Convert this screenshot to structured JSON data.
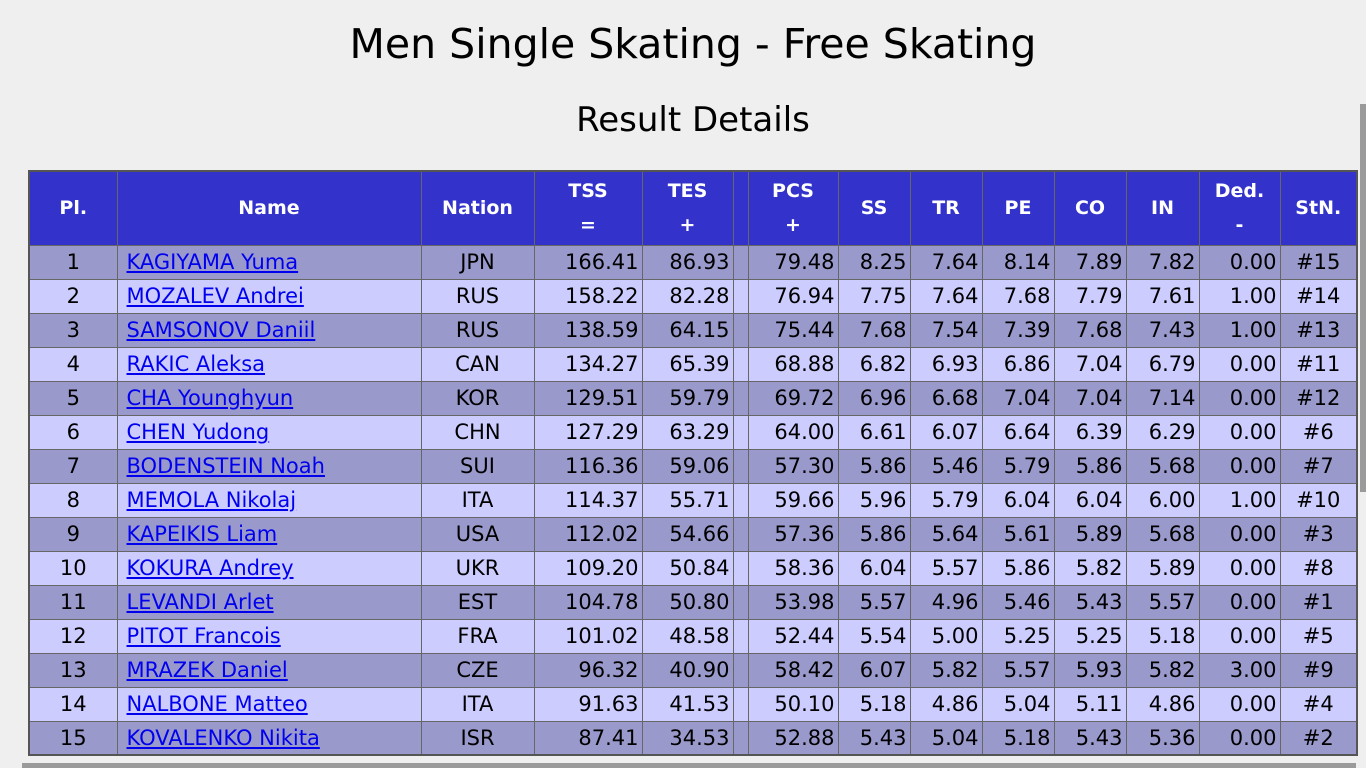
{
  "title": "Men Single Skating - Free Skating",
  "subtitle": "Result Details",
  "headers": {
    "pl": "Pl.",
    "name": "Name",
    "nation": "Nation",
    "tss": "TSS",
    "tss_sym": "=",
    "tes": "TES",
    "tes_sym": "+",
    "pcs": "PCS",
    "pcs_sym": "+",
    "ss": "SS",
    "tr": "TR",
    "pe": "PE",
    "co": "CO",
    "in": "IN",
    "ded": "Ded.",
    "ded_sym": "-",
    "stn": "StN."
  },
  "rows": [
    {
      "pl": "1",
      "name": "KAGIYAMA Yuma",
      "nation": "JPN",
      "tss": "166.41",
      "tes": "86.93",
      "pcs": "79.48",
      "ss": "8.25",
      "tr": "7.64",
      "pe": "8.14",
      "co": "7.89",
      "in": "7.82",
      "ded": "0.00",
      "stn": "#15"
    },
    {
      "pl": "2",
      "name": "MOZALEV Andrei",
      "nation": "RUS",
      "tss": "158.22",
      "tes": "82.28",
      "pcs": "76.94",
      "ss": "7.75",
      "tr": "7.64",
      "pe": "7.68",
      "co": "7.79",
      "in": "7.61",
      "ded": "1.00",
      "stn": "#14"
    },
    {
      "pl": "3",
      "name": "SAMSONOV Daniil",
      "nation": "RUS",
      "tss": "138.59",
      "tes": "64.15",
      "pcs": "75.44",
      "ss": "7.68",
      "tr": "7.54",
      "pe": "7.39",
      "co": "7.68",
      "in": "7.43",
      "ded": "1.00",
      "stn": "#13"
    },
    {
      "pl": "4",
      "name": "RAKIC Aleksa",
      "nation": "CAN",
      "tss": "134.27",
      "tes": "65.39",
      "pcs": "68.88",
      "ss": "6.82",
      "tr": "6.93",
      "pe": "6.86",
      "co": "7.04",
      "in": "6.79",
      "ded": "0.00",
      "stn": "#11"
    },
    {
      "pl": "5",
      "name": "CHA Younghyun",
      "nation": "KOR",
      "tss": "129.51",
      "tes": "59.79",
      "pcs": "69.72",
      "ss": "6.96",
      "tr": "6.68",
      "pe": "7.04",
      "co": "7.04",
      "in": "7.14",
      "ded": "0.00",
      "stn": "#12"
    },
    {
      "pl": "6",
      "name": "CHEN Yudong",
      "nation": "CHN",
      "tss": "127.29",
      "tes": "63.29",
      "pcs": "64.00",
      "ss": "6.61",
      "tr": "6.07",
      "pe": "6.64",
      "co": "6.39",
      "in": "6.29",
      "ded": "0.00",
      "stn": "#6"
    },
    {
      "pl": "7",
      "name": "BODENSTEIN Noah",
      "nation": "SUI",
      "tss": "116.36",
      "tes": "59.06",
      "pcs": "57.30",
      "ss": "5.86",
      "tr": "5.46",
      "pe": "5.79",
      "co": "5.86",
      "in": "5.68",
      "ded": "0.00",
      "stn": "#7"
    },
    {
      "pl": "8",
      "name": "MEMOLA Nikolaj",
      "nation": "ITA",
      "tss": "114.37",
      "tes": "55.71",
      "pcs": "59.66",
      "ss": "5.96",
      "tr": "5.79",
      "pe": "6.04",
      "co": "6.04",
      "in": "6.00",
      "ded": "1.00",
      "stn": "#10"
    },
    {
      "pl": "9",
      "name": "KAPEIKIS Liam",
      "nation": "USA",
      "tss": "112.02",
      "tes": "54.66",
      "pcs": "57.36",
      "ss": "5.86",
      "tr": "5.64",
      "pe": "5.61",
      "co": "5.89",
      "in": "5.68",
      "ded": "0.00",
      "stn": "#3"
    },
    {
      "pl": "10",
      "name": "KOKURA Andrey",
      "nation": "UKR",
      "tss": "109.20",
      "tes": "50.84",
      "pcs": "58.36",
      "ss": "6.04",
      "tr": "5.57",
      "pe": "5.86",
      "co": "5.82",
      "in": "5.89",
      "ded": "0.00",
      "stn": "#8"
    },
    {
      "pl": "11",
      "name": "LEVANDI Arlet",
      "nation": "EST",
      "tss": "104.78",
      "tes": "50.80",
      "pcs": "53.98",
      "ss": "5.57",
      "tr": "4.96",
      "pe": "5.46",
      "co": "5.43",
      "in": "5.57",
      "ded": "0.00",
      "stn": "#1"
    },
    {
      "pl": "12",
      "name": "PITOT Francois",
      "nation": "FRA",
      "tss": "101.02",
      "tes": "48.58",
      "pcs": "52.44",
      "ss": "5.54",
      "tr": "5.00",
      "pe": "5.25",
      "co": "5.25",
      "in": "5.18",
      "ded": "0.00",
      "stn": "#5"
    },
    {
      "pl": "13",
      "name": "MRAZEK Daniel",
      "nation": "CZE",
      "tss": "96.32",
      "tes": "40.90",
      "pcs": "58.42",
      "ss": "6.07",
      "tr": "5.82",
      "pe": "5.57",
      "co": "5.93",
      "in": "5.82",
      "ded": "3.00",
      "stn": "#9"
    },
    {
      "pl": "14",
      "name": "NALBONE Matteo",
      "nation": "ITA",
      "tss": "91.63",
      "tes": "41.53",
      "pcs": "50.10",
      "ss": "5.18",
      "tr": "4.86",
      "pe": "5.04",
      "co": "5.11",
      "in": "4.86",
      "ded": "0.00",
      "stn": "#4"
    },
    {
      "pl": "15",
      "name": "KOVALENKO Nikita",
      "nation": "ISR",
      "tss": "87.41",
      "tes": "34.53",
      "pcs": "52.88",
      "ss": "5.43",
      "tr": "5.04",
      "pe": "5.18",
      "co": "5.43",
      "in": "5.36",
      "ded": "0.00",
      "stn": "#2"
    }
  ]
}
